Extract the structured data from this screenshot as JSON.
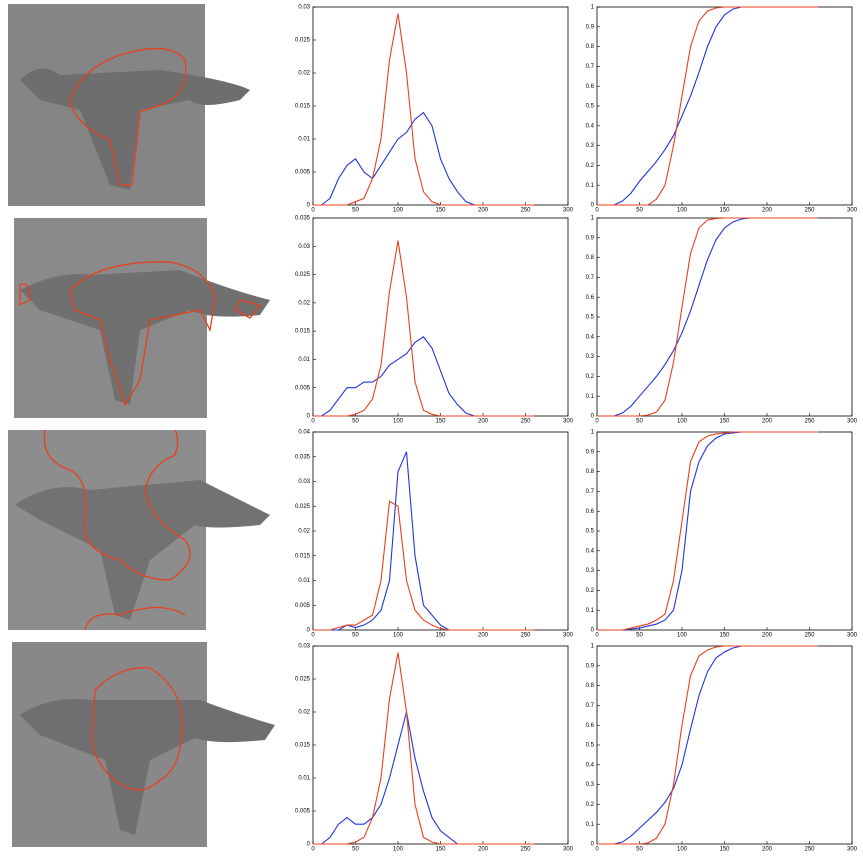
{
  "chart_data": [
    {
      "type": "line",
      "x": [
        0,
        10,
        20,
        30,
        40,
        50,
        60,
        70,
        80,
        90,
        100,
        110,
        120,
        130,
        140,
        150,
        160,
        170,
        180,
        190,
        200,
        210,
        220,
        230,
        240,
        250,
        260
      ],
      "xlim": [
        0,
        300
      ],
      "xticks": [
        0,
        50,
        100,
        150,
        200,
        250,
        300
      ],
      "ylim": [
        0,
        0.03
      ],
      "yticks": [
        0,
        0.005,
        0.01,
        0.015,
        0.02,
        0.025,
        0.03
      ],
      "series": [
        {
          "color": "#1f35e0",
          "values": [
            0,
            0,
            0.001,
            0.004,
            0.006,
            0.007,
            0.005,
            0.004,
            0.006,
            0.008,
            0.01,
            0.011,
            0.013,
            0.014,
            0.012,
            0.007,
            0.004,
            0.002,
            0.0005,
            0,
            0,
            0,
            0,
            0,
            0,
            0,
            0
          ]
        },
        {
          "color": "#e8401c",
          "values": [
            0,
            0,
            0,
            0,
            0,
            0.0005,
            0.001,
            0.004,
            0.01,
            0.022,
            0.029,
            0.02,
            0.007,
            0.002,
            0.0005,
            0,
            0,
            0,
            0,
            0,
            0,
            0,
            0,
            0,
            0,
            0,
            0
          ]
        }
      ]
    },
    {
      "type": "line",
      "x": [
        0,
        10,
        20,
        30,
        40,
        50,
        60,
        70,
        80,
        90,
        100,
        110,
        120,
        130,
        140,
        150,
        160,
        170,
        180,
        190,
        200,
        210,
        220,
        230,
        240,
        250,
        260
      ],
      "xlim": [
        0,
        300
      ],
      "xticks": [
        0,
        50,
        100,
        150,
        200,
        250,
        300
      ],
      "ylim": [
        0,
        1
      ],
      "yticks": [
        0,
        0.1,
        0.2,
        0.3,
        0.4,
        0.5,
        0.6,
        0.7,
        0.8,
        0.9,
        1
      ],
      "series": [
        {
          "color": "#1f35e0",
          "values": [
            0,
            0,
            0,
            0.02,
            0.06,
            0.12,
            0.17,
            0.22,
            0.28,
            0.35,
            0.45,
            0.55,
            0.67,
            0.8,
            0.9,
            0.96,
            0.99,
            1,
            1,
            1,
            1,
            1,
            1,
            1,
            1,
            1,
            1
          ]
        },
        {
          "color": "#e8401c",
          "values": [
            0,
            0,
            0,
            0,
            0,
            0,
            0,
            0.03,
            0.1,
            0.3,
            0.55,
            0.8,
            0.93,
            0.98,
            0.995,
            1,
            1,
            1,
            1,
            1,
            1,
            1,
            1,
            1,
            1,
            1,
            1
          ]
        }
      ]
    },
    {
      "type": "line",
      "x": [
        0,
        10,
        20,
        30,
        40,
        50,
        60,
        70,
        80,
        90,
        100,
        110,
        120,
        130,
        140,
        150,
        160,
        170,
        180,
        190,
        200,
        210,
        220,
        230,
        240,
        250,
        260
      ],
      "xlim": [
        0,
        300
      ],
      "xticks": [
        0,
        50,
        100,
        150,
        200,
        250,
        300
      ],
      "ylim": [
        0,
        0.035
      ],
      "yticks": [
        0,
        0.005,
        0.01,
        0.015,
        0.02,
        0.025,
        0.03,
        0.035
      ],
      "series": [
        {
          "color": "#1f35e0",
          "values": [
            0,
            0,
            0.001,
            0.003,
            0.005,
            0.005,
            0.006,
            0.006,
            0.007,
            0.009,
            0.01,
            0.011,
            0.013,
            0.014,
            0.012,
            0.008,
            0.004,
            0.002,
            0.0005,
            0,
            0,
            0,
            0,
            0,
            0,
            0,
            0
          ]
        },
        {
          "color": "#e8401c",
          "values": [
            0,
            0,
            0,
            0,
            0,
            0.0003,
            0.001,
            0.003,
            0.009,
            0.022,
            0.031,
            0.021,
            0.006,
            0.001,
            0.0003,
            0,
            0,
            0,
            0,
            0,
            0,
            0,
            0,
            0,
            0,
            0,
            0
          ]
        }
      ]
    },
    {
      "type": "line",
      "x": [
        0,
        10,
        20,
        30,
        40,
        50,
        60,
        70,
        80,
        90,
        100,
        110,
        120,
        130,
        140,
        150,
        160,
        170,
        180,
        190,
        200,
        210,
        220,
        230,
        240,
        250,
        260
      ],
      "xlim": [
        0,
        300
      ],
      "xticks": [
        0,
        50,
        100,
        150,
        200,
        250,
        300
      ],
      "ylim": [
        0,
        1
      ],
      "yticks": [
        0,
        0.1,
        0.2,
        0.3,
        0.4,
        0.5,
        0.6,
        0.7,
        0.8,
        0.9,
        1
      ],
      "series": [
        {
          "color": "#1f35e0",
          "values": [
            0,
            0,
            0,
            0.015,
            0.05,
            0.1,
            0.15,
            0.2,
            0.26,
            0.33,
            0.42,
            0.53,
            0.66,
            0.79,
            0.89,
            0.95,
            0.98,
            0.995,
            1,
            1,
            1,
            1,
            1,
            1,
            1,
            1,
            1
          ]
        },
        {
          "color": "#e8401c",
          "values": [
            0,
            0,
            0,
            0,
            0,
            0,
            0.005,
            0.02,
            0.08,
            0.27,
            0.55,
            0.82,
            0.95,
            0.99,
            0.998,
            1,
            1,
            1,
            1,
            1,
            1,
            1,
            1,
            1,
            1,
            1,
            1
          ]
        }
      ]
    },
    {
      "type": "line",
      "x": [
        0,
        10,
        20,
        30,
        40,
        50,
        60,
        70,
        80,
        90,
        100,
        110,
        120,
        130,
        140,
        150,
        160,
        170,
        180,
        190,
        200,
        210,
        220,
        230,
        240,
        250,
        260
      ],
      "xlim": [
        0,
        300
      ],
      "xticks": [
        0,
        50,
        100,
        150,
        200,
        250,
        300
      ],
      "ylim": [
        0,
        0.04
      ],
      "yticks": [
        0,
        0.005,
        0.01,
        0.015,
        0.02,
        0.025,
        0.03,
        0.035,
        0.04
      ],
      "series": [
        {
          "color": "#1f35e0",
          "values": [
            0,
            0,
            0,
            0,
            0.001,
            0.0005,
            0.001,
            0.002,
            0.004,
            0.01,
            0.032,
            0.036,
            0.015,
            0.005,
            0.003,
            0.001,
            0,
            0,
            0,
            0,
            0,
            0,
            0,
            0,
            0,
            0,
            0
          ]
        },
        {
          "color": "#e8401c",
          "values": [
            0,
            0,
            0,
            0.0005,
            0.001,
            0.001,
            0.002,
            0.003,
            0.01,
            0.026,
            0.025,
            0.01,
            0.004,
            0.002,
            0.001,
            0.0003,
            0,
            0,
            0,
            0,
            0,
            0,
            0,
            0,
            0,
            0,
            0
          ]
        }
      ]
    },
    {
      "type": "line",
      "x": [
        0,
        10,
        20,
        30,
        40,
        50,
        60,
        70,
        80,
        90,
        100,
        110,
        120,
        130,
        140,
        150,
        160,
        170,
        180,
        190,
        200,
        210,
        220,
        230,
        240,
        250,
        260
      ],
      "xlim": [
        0,
        300
      ],
      "xticks": [
        0,
        50,
        100,
        150,
        200,
        250,
        300
      ],
      "ylim": [
        0,
        1
      ],
      "yticks": [
        0,
        0.1,
        0.2,
        0.3,
        0.4,
        0.5,
        0.6,
        0.7,
        0.8,
        0.9,
        1
      ],
      "series": [
        {
          "color": "#1f35e0",
          "values": [
            0,
            0,
            0,
            0,
            0.005,
            0.01,
            0.02,
            0.03,
            0.05,
            0.1,
            0.3,
            0.7,
            0.85,
            0.93,
            0.97,
            0.99,
            0.995,
            1,
            1,
            1,
            1,
            1,
            1,
            1,
            1,
            1,
            1
          ]
        },
        {
          "color": "#e8401c",
          "values": [
            0,
            0,
            0,
            0,
            0.01,
            0.02,
            0.03,
            0.05,
            0.08,
            0.25,
            0.55,
            0.85,
            0.95,
            0.98,
            0.99,
            0.995,
            1,
            1,
            1,
            1,
            1,
            1,
            1,
            1,
            1,
            1,
            1
          ]
        }
      ]
    },
    {
      "type": "line",
      "x": [
        0,
        10,
        20,
        30,
        40,
        50,
        60,
        70,
        80,
        90,
        100,
        110,
        120,
        130,
        140,
        150,
        160,
        170,
        180,
        190,
        200,
        210,
        220,
        230,
        240,
        250,
        260
      ],
      "xlim": [
        0,
        300
      ],
      "xticks": [
        0,
        50,
        100,
        150,
        200,
        250,
        300
      ],
      "ylim": [
        0,
        0.03
      ],
      "yticks": [
        0,
        0.005,
        0.01,
        0.015,
        0.02,
        0.025,
        0.03
      ],
      "series": [
        {
          "color": "#1f35e0",
          "values": [
            0,
            0,
            0.001,
            0.003,
            0.004,
            0.003,
            0.003,
            0.004,
            0.006,
            0.01,
            0.015,
            0.02,
            0.013,
            0.008,
            0.004,
            0.002,
            0.001,
            0,
            0,
            0,
            0,
            0,
            0,
            0,
            0,
            0,
            0
          ]
        },
        {
          "color": "#e8401c",
          "values": [
            0,
            0,
            0,
            0,
            0,
            0.0003,
            0.001,
            0.004,
            0.01,
            0.022,
            0.029,
            0.02,
            0.006,
            0.001,
            0.0003,
            0,
            0,
            0,
            0,
            0,
            0,
            0,
            0,
            0,
            0,
            0,
            0
          ]
        }
      ]
    },
    {
      "type": "line",
      "x": [
        0,
        10,
        20,
        30,
        40,
        50,
        60,
        70,
        80,
        90,
        100,
        110,
        120,
        130,
        140,
        150,
        160,
        170,
        180,
        190,
        200,
        210,
        220,
        230,
        240,
        250,
        260
      ],
      "xlim": [
        0,
        300
      ],
      "xticks": [
        0,
        50,
        100,
        150,
        200,
        250,
        300
      ],
      "ylim": [
        0,
        1
      ],
      "yticks": [
        0,
        0.1,
        0.2,
        0.3,
        0.4,
        0.5,
        0.6,
        0.7,
        0.8,
        0.9,
        1
      ],
      "series": [
        {
          "color": "#1f35e0",
          "values": [
            0,
            0,
            0,
            0.01,
            0.04,
            0.08,
            0.12,
            0.16,
            0.21,
            0.28,
            0.4,
            0.58,
            0.75,
            0.87,
            0.94,
            0.97,
            0.99,
            1,
            1,
            1,
            1,
            1,
            1,
            1,
            1,
            1,
            1
          ]
        },
        {
          "color": "#e8401c",
          "values": [
            0,
            0,
            0,
            0,
            0,
            0,
            0.005,
            0.03,
            0.1,
            0.3,
            0.6,
            0.85,
            0.95,
            0.98,
            0.995,
            1,
            1,
            1,
            1,
            1,
            1,
            1,
            1,
            1,
            1,
            1,
            1
          ]
        }
      ]
    }
  ]
}
